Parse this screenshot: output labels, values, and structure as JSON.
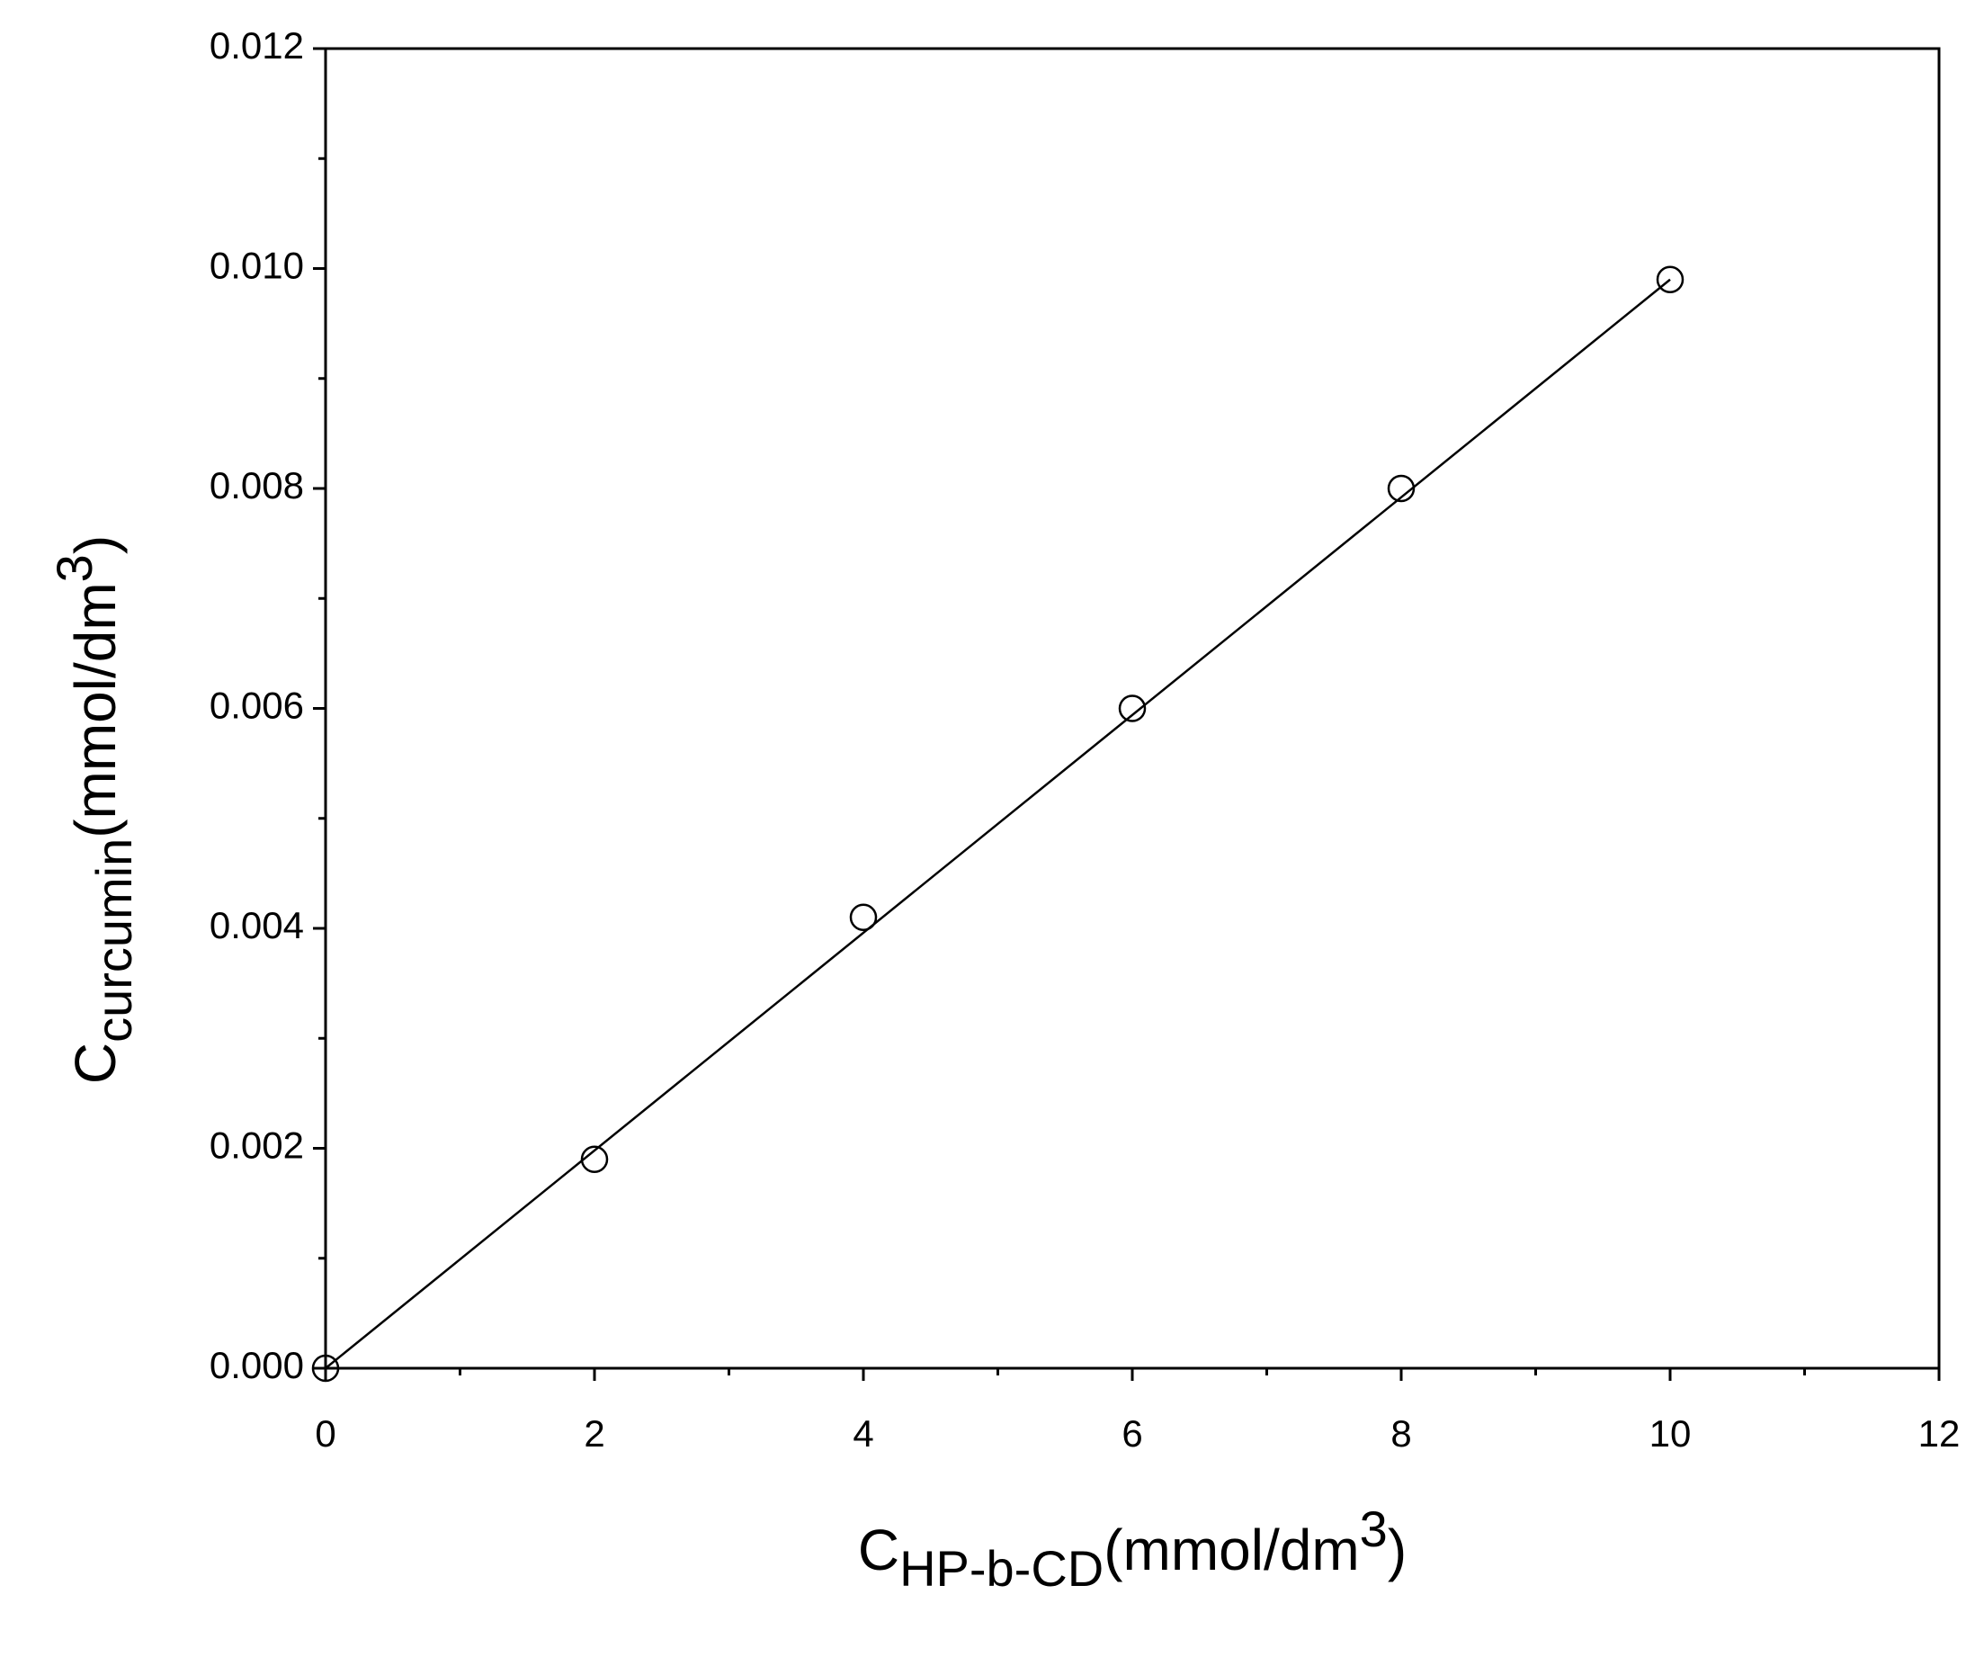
{
  "chart_data": {
    "type": "scatter",
    "x_label": [
      "C",
      "HP-b-CD",
      "(mmol/dm",
      "3",
      ")"
    ],
    "y_label": [
      "C",
      "curcumin",
      "(mmol/dm",
      "3",
      ")"
    ],
    "series": [
      {
        "mode": "markers",
        "color": "#000000",
        "x": [
          0,
          2,
          4,
          6,
          8,
          10
        ],
        "values": [
          0,
          0.0019,
          0.0041,
          0.006,
          0.008,
          0.0099
        ]
      },
      {
        "mode": "line",
        "color": "#000000",
        "x": [
          0,
          10
        ],
        "values": [
          0,
          0.0099
        ]
      }
    ],
    "xlim": [
      0,
      12
    ],
    "xticks": [
      0,
      2,
      4,
      6,
      8,
      10,
      12
    ],
    "ylim": [
      0,
      0.012
    ],
    "yticks": [
      {
        "value": 0,
        "label": "0.000"
      },
      {
        "value": 0.002,
        "label": "0.002"
      },
      {
        "value": 0.004,
        "label": "0.004"
      },
      {
        "value": 0.006,
        "label": "0.006"
      },
      {
        "value": 0.008,
        "label": "0.008"
      },
      {
        "value": 0.01,
        "label": "0.010"
      },
      {
        "value": 0.012,
        "label": "0.012"
      }
    ],
    "grid": false
  }
}
